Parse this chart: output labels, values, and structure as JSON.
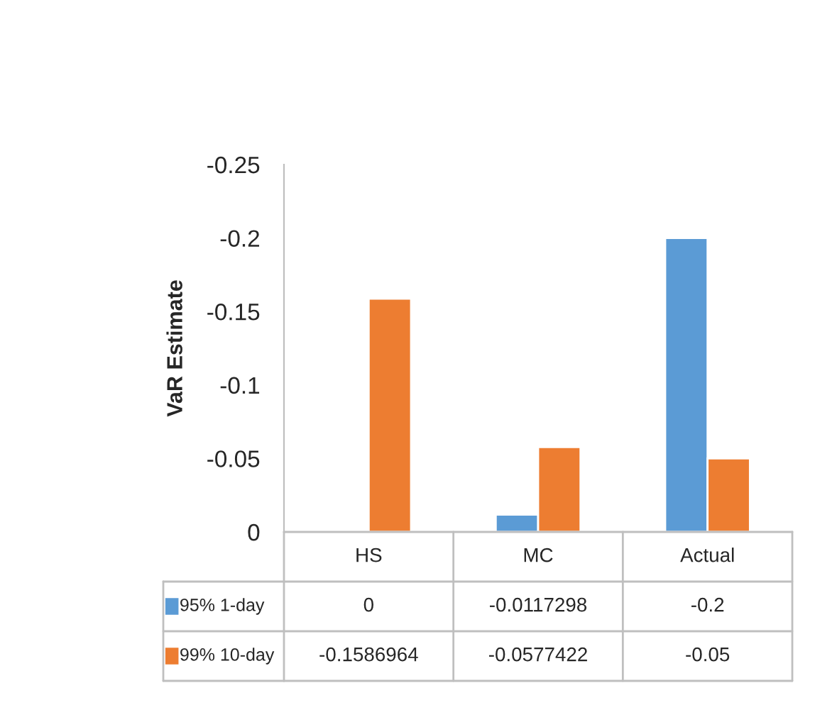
{
  "chart_data": {
    "type": "bar",
    "ylabel": "VaR Estimate",
    "categories": [
      "HS",
      "MC",
      "Actual"
    ],
    "series": [
      {
        "name": "95% 1-day",
        "color": "#5b9bd5",
        "values": [
          0,
          -0.0117298,
          -0.2
        ]
      },
      {
        "name": "99% 10-day",
        "color": "#ed7d31",
        "values": [
          -0.1586964,
          -0.0577422,
          -0.05
        ]
      }
    ],
    "ylim": [
      0,
      -0.25
    ],
    "yticks": [
      0,
      -0.05,
      -0.1,
      -0.15,
      -0.2,
      -0.25
    ],
    "data_labels": true,
    "legend": "bottom",
    "grid": false
  }
}
